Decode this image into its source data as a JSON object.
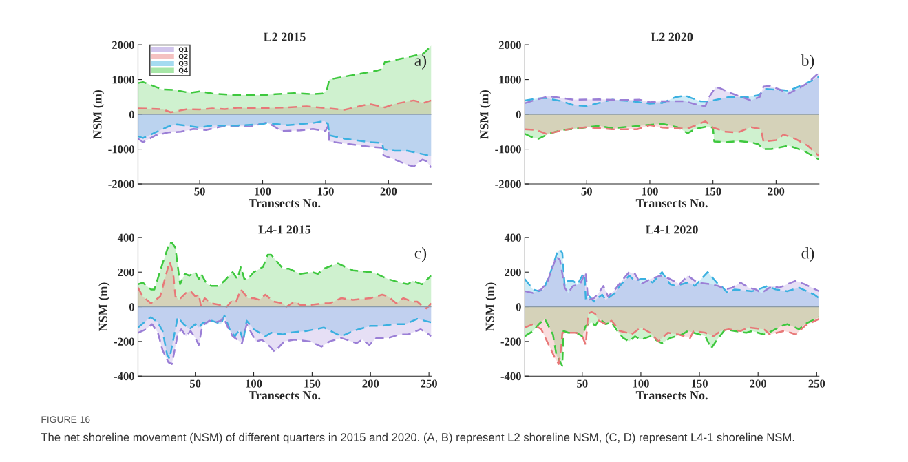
{
  "chart_data": [
    {
      "type": "area",
      "title": "L2 2015",
      "xlabel": "Transects No.",
      "ylabel": "NSM (m)",
      "xlim": [
        1,
        234
      ],
      "ylim": [
        -2000,
        2000
      ],
      "xticks": [
        50,
        100,
        150,
        200
      ],
      "yticks": [
        -2000,
        -1000,
        0,
        1000,
        2000
      ],
      "legend": "top left",
      "line_style": "dashed",
      "grid": false,
      "ref_lines": [
        {
          "axis": "y",
          "value": 0,
          "color": "#8a9aa8"
        }
      ],
      "annotations": [
        "a)"
      ],
      "series": [
        {
          "name": "Q1",
          "color": "#9b7fd6",
          "x": [
            1,
            5,
            15,
            25,
            35,
            45,
            55,
            70,
            90,
            103,
            108,
            115,
            130,
            140,
            150,
            152,
            153,
            170,
            185,
            195,
            196,
            205,
            215,
            220,
            227,
            230,
            234
          ],
          "values": [
            -700,
            -800,
            -600,
            -520,
            -500,
            -420,
            -450,
            -330,
            -350,
            -240,
            -320,
            -480,
            -460,
            -420,
            -480,
            -330,
            -780,
            -860,
            -930,
            -960,
            -1180,
            -1300,
            -1450,
            -1500,
            -1300,
            -1350,
            -1530
          ]
        },
        {
          "name": "Q2",
          "color": "#e87878",
          "x": [
            1,
            20,
            27,
            40,
            50,
            60,
            70,
            80,
            100,
            120,
            135,
            150,
            165,
            180,
            186,
            197,
            205,
            220,
            228,
            234
          ],
          "values": [
            170,
            150,
            60,
            150,
            140,
            170,
            150,
            190,
            180,
            200,
            230,
            180,
            130,
            260,
            290,
            200,
            300,
            400,
            330,
            400
          ]
        },
        {
          "name": "Q3",
          "color": "#3ab0e0",
          "x": [
            1,
            5,
            25,
            32,
            50,
            60,
            80,
            100,
            103,
            120,
            140,
            149,
            152,
            153,
            165,
            185,
            195,
            196,
            205,
            215,
            228,
            234
          ],
          "values": [
            -630,
            -680,
            -350,
            -290,
            -380,
            -320,
            -320,
            -280,
            -250,
            -310,
            -250,
            -190,
            -280,
            -600,
            -700,
            -800,
            -820,
            -1000,
            -1050,
            -1050,
            -1150,
            -1200
          ]
        },
        {
          "name": "Q4",
          "color": "#3ec83e",
          "x": [
            1,
            5,
            20,
            30,
            42,
            50,
            60,
            75,
            100,
            110,
            125,
            140,
            148,
            151,
            153,
            160,
            175,
            190,
            195,
            197,
            210,
            222,
            228,
            234
          ],
          "values": [
            900,
            930,
            720,
            700,
            620,
            660,
            600,
            560,
            550,
            580,
            610,
            580,
            600,
            700,
            1000,
            1050,
            1150,
            1250,
            1300,
            1500,
            1600,
            1700,
            1750,
            1980
          ]
        }
      ]
    },
    {
      "type": "area",
      "title": "L2 2020",
      "xlabel": "Transects No.",
      "ylabel": "NSM (m)",
      "xlim": [
        1,
        234
      ],
      "ylim": [
        -2000,
        2000
      ],
      "xticks": [
        50,
        100,
        150,
        200
      ],
      "yticks": [
        -2000,
        -1000,
        0,
        1000,
        2000
      ],
      "line_style": "dashed",
      "grid": false,
      "ref_lines": [
        {
          "axis": "y",
          "value": 0,
          "color": "#8a9aa8"
        }
      ],
      "annotations": [
        "b)"
      ],
      "series": [
        {
          "color": "#3ec83e",
          "x": [
            1,
            8,
            12,
            20,
            30,
            40,
            50,
            60,
            70,
            85,
            100,
            110,
            122,
            130,
            136,
            144,
            150,
            151,
            160,
            170,
            180,
            186,
            190,
            196,
            210,
            222,
            234
          ],
          "values": [
            -560,
            -680,
            -700,
            -560,
            -450,
            -420,
            -370,
            -330,
            -400,
            -350,
            -300,
            -270,
            -370,
            -540,
            -420,
            -360,
            -380,
            -780,
            -800,
            -770,
            -800,
            -860,
            -1000,
            -1000,
            -900,
            -1050,
            -1300
          ]
        },
        {
          "color": "#e87878",
          "x": [
            1,
            10,
            18,
            30,
            40,
            50,
            60,
            70,
            90,
            100,
            110,
            120,
            130,
            140,
            144,
            150,
            160,
            170,
            175,
            180,
            188,
            190,
            200,
            206,
            215,
            225,
            234
          ],
          "values": [
            -430,
            -450,
            -560,
            -470,
            -400,
            -370,
            -400,
            -430,
            -430,
            -310,
            -380,
            -400,
            -410,
            -260,
            -200,
            -380,
            -500,
            -520,
            -440,
            -370,
            -420,
            -780,
            -740,
            -580,
            -700,
            -900,
            -1200
          ]
        },
        {
          "color": "#3ab0e0",
          "x": [
            1,
            10,
            17,
            30,
            40,
            50,
            60,
            70,
            85,
            100,
            110,
            120,
            128,
            133,
            140,
            147,
            150,
            163,
            178,
            186,
            192,
            205,
            210,
            220,
            230,
            234
          ],
          "values": [
            400,
            450,
            470,
            380,
            260,
            240,
            330,
            420,
            380,
            310,
            330,
            490,
            540,
            470,
            380,
            370,
            400,
            500,
            500,
            550,
            730,
            700,
            680,
            830,
            1000,
            1080
          ]
        },
        {
          "color": "#9b7fd6",
          "x": [
            1,
            8,
            20,
            28,
            40,
            60,
            80,
            92,
            100,
            110,
            128,
            135,
            144,
            146,
            152,
            155,
            165,
            180,
            187,
            190,
            195,
            204,
            209,
            218,
            225,
            234
          ],
          "values": [
            320,
            400,
            520,
            480,
            420,
            430,
            410,
            420,
            350,
            380,
            380,
            300,
            230,
            440,
            780,
            760,
            600,
            400,
            500,
            800,
            820,
            700,
            580,
            750,
            900,
            1200
          ]
        }
      ]
    },
    {
      "type": "area",
      "title": "L4-1 2015",
      "xlabel": "Transects No.",
      "ylabel": "NSM (m)",
      "xlim": [
        1,
        252
      ],
      "ylim": [
        -400,
        400
      ],
      "xticks": [
        50,
        100,
        150,
        200,
        250
      ],
      "yticks": [
        -400,
        -200,
        0,
        200,
        400
      ],
      "line_style": "dashed",
      "grid": false,
      "ref_lines": [
        {
          "axis": "y",
          "value": 0,
          "color": "#8a9aa8"
        }
      ],
      "annotations": [
        "c)"
      ],
      "series": [
        {
          "color": "#3ec83e",
          "x": [
            1,
            5,
            12,
            15,
            22,
            28,
            30,
            33,
            37,
            41,
            45,
            50,
            53,
            55,
            60,
            64,
            70,
            75,
            82,
            86,
            89,
            92,
            95,
            100,
            108,
            112,
            115,
            120,
            125,
            130,
            140,
            150,
            155,
            160,
            172,
            185,
            200,
            205,
            215,
            225,
            232,
            236,
            244,
            252
          ],
          "values": [
            130,
            140,
            100,
            100,
            250,
            370,
            370,
            340,
            130,
            190,
            180,
            200,
            160,
            190,
            130,
            120,
            120,
            150,
            200,
            160,
            230,
            160,
            160,
            200,
            230,
            300,
            300,
            260,
            220,
            220,
            190,
            200,
            190,
            220,
            250,
            210,
            200,
            190,
            160,
            140,
            130,
            150,
            130,
            180
          ]
        },
        {
          "color": "#e87878",
          "x": [
            1,
            5,
            12,
            20,
            28,
            31,
            33,
            36,
            42,
            46,
            50,
            53,
            55,
            58,
            64,
            72,
            77,
            82,
            85,
            89,
            95,
            100,
            105,
            110,
            117,
            125,
            128,
            135,
            140,
            148,
            160,
            165,
            175,
            185,
            200,
            210,
            215,
            222,
            228,
            236,
            240,
            245,
            248,
            252
          ],
          "values": [
            110,
            60,
            20,
            60,
            260,
            200,
            60,
            40,
            80,
            90,
            60,
            70,
            0,
            50,
            20,
            10,
            0,
            40,
            30,
            100,
            50,
            50,
            40,
            70,
            30,
            20,
            0,
            30,
            10,
            10,
            20,
            20,
            50,
            40,
            50,
            70,
            60,
            20,
            50,
            30,
            30,
            0,
            -10,
            20
          ]
        },
        {
          "color": "#3ab0e0",
          "x": [
            1,
            8,
            12,
            18,
            22,
            26,
            28,
            30,
            35,
            40,
            45,
            50,
            53,
            57,
            60,
            64,
            68,
            72,
            75,
            80,
            84,
            88,
            91,
            94,
            100,
            110,
            115,
            125,
            130,
            145,
            160,
            175,
            185,
            200,
            210,
            220,
            230,
            240,
            252
          ],
          "values": [
            -120,
            -80,
            -60,
            -90,
            -140,
            -280,
            -300,
            -230,
            -60,
            -100,
            -130,
            -100,
            -120,
            -90,
            -100,
            -80,
            -90,
            -100,
            -50,
            -140,
            -170,
            -130,
            -200,
            -80,
            -130,
            -170,
            -150,
            -160,
            -150,
            -140,
            -120,
            -170,
            -140,
            -110,
            -110,
            -100,
            -100,
            -70,
            -90
          ]
        },
        {
          "color": "#9b7fd6",
          "x": [
            1,
            8,
            13,
            18,
            22,
            27,
            30,
            35,
            38,
            42,
            46,
            50,
            53,
            56,
            62,
            67,
            72,
            74,
            78,
            82,
            86,
            90,
            94,
            98,
            102,
            107,
            114,
            118,
            126,
            135,
            148,
            158,
            165,
            175,
            188,
            193,
            199,
            205,
            215,
            225,
            232,
            243,
            250,
            252
          ],
          "values": [
            -150,
            -130,
            -100,
            -150,
            -250,
            -320,
            -330,
            -160,
            -130,
            -170,
            -140,
            -180,
            -220,
            -110,
            -80,
            -90,
            -80,
            -60,
            -120,
            -170,
            -190,
            -210,
            -100,
            -150,
            -200,
            -190,
            -230,
            -260,
            -200,
            -190,
            -200,
            -230,
            -200,
            -180,
            -210,
            -190,
            -220,
            -180,
            -180,
            -160,
            -160,
            -130,
            -160,
            -170
          ]
        }
      ]
    },
    {
      "type": "area",
      "title": "L4-1 2020",
      "xlabel": "Transects No.",
      "ylabel": "NSM (m)",
      "xlim": [
        1,
        252
      ],
      "ylim": [
        -400,
        400
      ],
      "xticks": [
        50,
        100,
        150,
        200,
        250
      ],
      "yticks": [
        -400,
        -200,
        0,
        200,
        400
      ],
      "line_style": "dashed",
      "grid": false,
      "ref_lines": [
        {
          "axis": "y",
          "value": 0,
          "color": "#8a9aa8"
        }
      ],
      "annotations": [
        "d)",
        "FIGURE 16",
        "The net shoreline movement (NSM) of different quarters in 2015 and 2020. (A, B) represent L2 shoreline NSM, (C, D) represent L4-1 shoreline NSM."
      ],
      "series": [
        {
          "color": "#3ec83e",
          "x": [
            1,
            8,
            13,
            18,
            25,
            28,
            32,
            33,
            34,
            38,
            45,
            50,
            53,
            58,
            61,
            65,
            70,
            75,
            80,
            85,
            90,
            95,
            100,
            108,
            115,
            118,
            125,
            135,
            140,
            145,
            155,
            160,
            165,
            172,
            180,
            190,
            195,
            205,
            212,
            220,
            225,
            235,
            240,
            252
          ],
          "values": [
            -170,
            -140,
            -100,
            -70,
            -160,
            -280,
            -330,
            -340,
            -140,
            -150,
            -150,
            -170,
            -110,
            -90,
            -110,
            -70,
            -100,
            -90,
            -140,
            -180,
            -200,
            -170,
            -190,
            -170,
            -200,
            -210,
            -180,
            -160,
            -140,
            -150,
            -170,
            -240,
            -190,
            -130,
            -140,
            -150,
            -140,
            -160,
            -140,
            -110,
            -100,
            -130,
            -100,
            -60
          ]
        },
        {
          "color": "#e87878",
          "x": [
            1,
            8,
            15,
            20,
            27,
            30,
            32,
            33,
            38,
            45,
            50,
            53,
            55,
            58,
            61,
            64,
            70,
            75,
            82,
            88,
            92,
            96,
            100,
            108,
            115,
            123,
            132,
            142,
            145,
            155,
            162,
            168,
            175,
            185,
            192,
            205,
            210,
            222,
            228,
            232,
            240,
            252
          ],
          "values": [
            -120,
            -100,
            -130,
            -200,
            -300,
            -330,
            -240,
            -150,
            -150,
            -150,
            -170,
            -220,
            -40,
            -30,
            -40,
            -80,
            -100,
            -80,
            -140,
            -150,
            -160,
            -140,
            -120,
            -150,
            -200,
            -150,
            -160,
            -180,
            -140,
            -150,
            -170,
            -140,
            -130,
            -140,
            -120,
            -130,
            -160,
            -140,
            -150,
            -160,
            -110,
            -70
          ]
        },
        {
          "color": "#3ab0e0",
          "x": [
            1,
            8,
            13,
            17,
            23,
            29,
            31,
            33,
            35,
            38,
            42,
            46,
            50,
            52,
            53,
            56,
            60,
            63,
            67,
            70,
            78,
            82,
            90,
            95,
            100,
            105,
            110,
            118,
            125,
            130,
            140,
            146,
            157,
            166,
            170,
            174,
            180,
            195,
            200,
            208,
            215,
            225,
            235,
            248,
            252
          ],
          "values": [
            160,
            100,
            90,
            100,
            200,
            320,
            330,
            310,
            120,
            150,
            150,
            130,
            180,
            190,
            40,
            60,
            30,
            50,
            70,
            40,
            80,
            120,
            180,
            150,
            160,
            160,
            140,
            200,
            130,
            120,
            140,
            120,
            200,
            130,
            110,
            80,
            100,
            90,
            100,
            120,
            100,
            90,
            110,
            70,
            50
          ]
        },
        {
          "color": "#9b7fd6",
          "x": [
            1,
            8,
            15,
            20,
            28,
            31,
            35,
            38,
            42,
            48,
            53,
            55,
            60,
            64,
            68,
            72,
            78,
            85,
            90,
            95,
            100,
            108,
            117,
            125,
            133,
            140,
            148,
            160,
            166,
            172,
            178,
            185,
            192,
            198,
            203,
            212,
            218,
            225,
            232,
            240,
            252
          ],
          "values": [
            90,
            80,
            100,
            140,
            290,
            270,
            110,
            80,
            120,
            130,
            200,
            40,
            50,
            80,
            120,
            60,
            100,
            160,
            200,
            190,
            130,
            160,
            180,
            160,
            130,
            180,
            140,
            130,
            120,
            100,
            110,
            140,
            110,
            100,
            80,
            120,
            110,
            130,
            150,
            130,
            90
          ]
        }
      ]
    }
  ]
}
